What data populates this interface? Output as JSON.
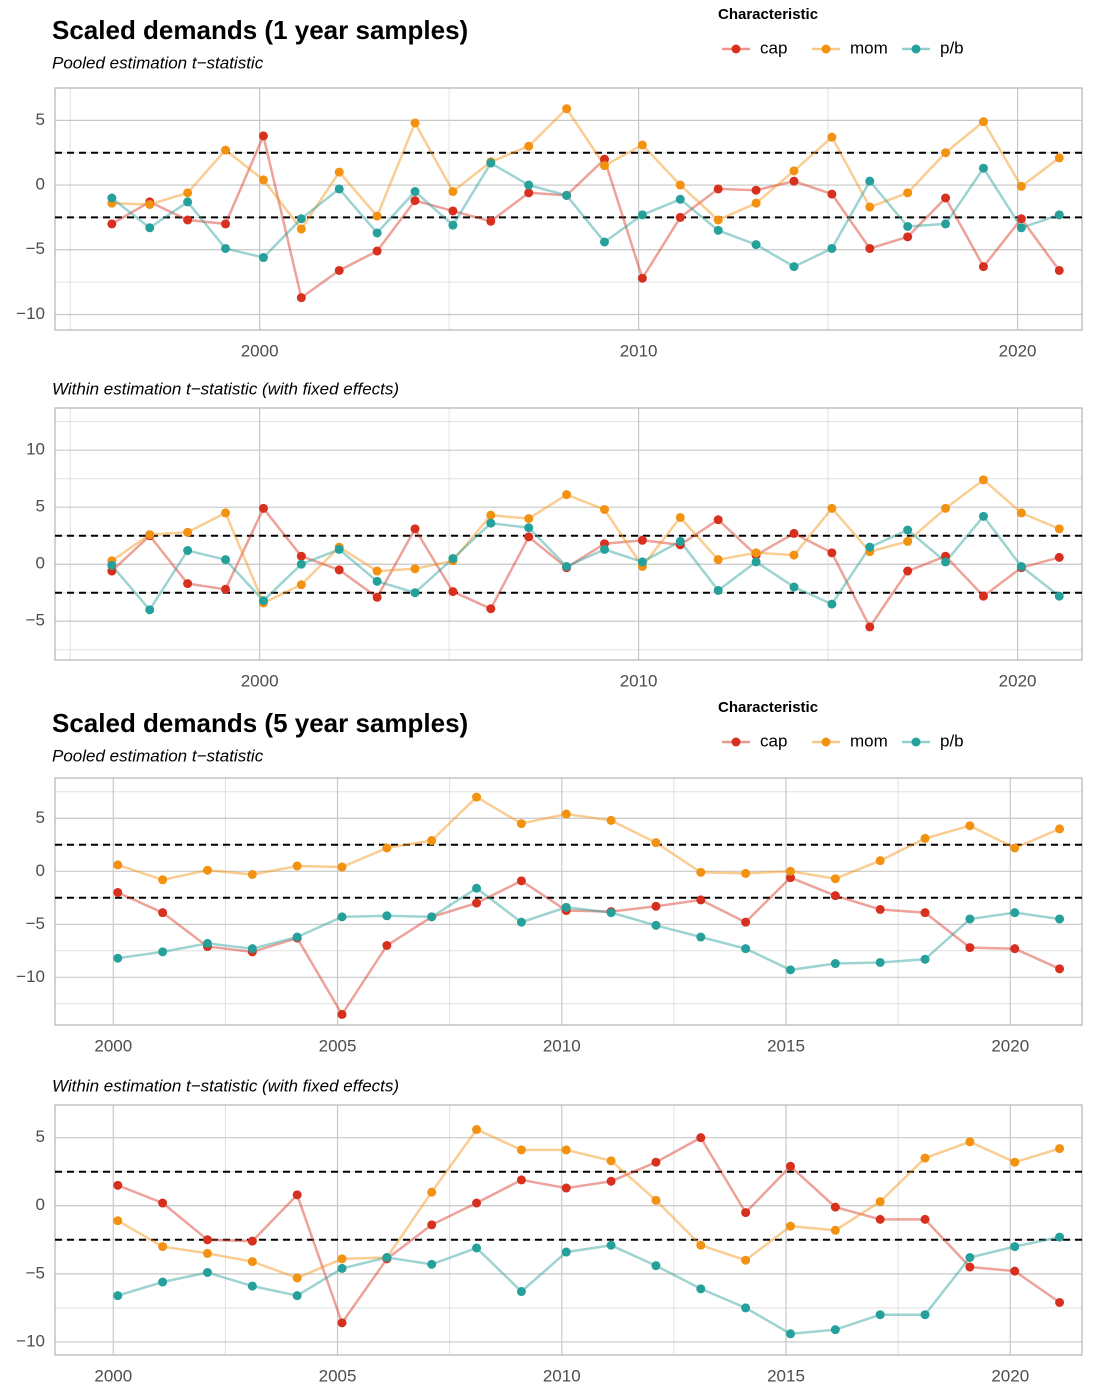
{
  "chart_data": [
    {
      "type": "line",
      "title": "Scaled demands (1 year samples)",
      "subtitle": "Pooled estimation t−statistic",
      "legend_title": "Characteristic",
      "legend": true,
      "x": [
        1996.1,
        1997.1,
        1998.1,
        1999.1,
        2000.1,
        2001.1,
        2002.1,
        2003.1,
        2004.1,
        2005.1,
        2006.1,
        2007.1,
        2008.1,
        2009.1,
        2010.1,
        2011.1,
        2012.1,
        2013.1,
        2014.1,
        2015.1,
        2016.1,
        2017.1,
        2018.1,
        2019.1,
        2020.1,
        2021.1
      ],
      "series": [
        {
          "name": "cap",
          "color": "#d7301f",
          "values": [
            -3,
            -1.3,
            -2.7,
            -3,
            3.8,
            -8.7,
            -6.6,
            -5.1,
            -1.2,
            -2.0,
            -2.8,
            -0.6,
            -0.8,
            2.0,
            -7.2,
            -2.5,
            -0.3,
            -0.4,
            0.3,
            -0.7,
            -4.9,
            -4.0,
            -1.0,
            -6.3,
            -2.6,
            -6.6
          ]
        },
        {
          "name": "mom",
          "color": "#f39110",
          "values": [
            -1.4,
            -1.5,
            -0.6,
            2.7,
            0.4,
            -3.4,
            1.0,
            -2.4,
            4.8,
            -0.5,
            1.8,
            3.0,
            5.9,
            1.5,
            3.1,
            0,
            -2.7,
            -1.4,
            1.1,
            3.7,
            -1.7,
            -0.6,
            2.5,
            4.9,
            -0.1,
            2.1
          ]
        },
        {
          "name": "p/b",
          "color": "#26a09a",
          "values": [
            -1.0,
            -3.3,
            -1.3,
            -4.9,
            -5.6,
            -2.6,
            -0.3,
            -3.7,
            -0.5,
            -3.1,
            1.7,
            0,
            -0.8,
            -4.4,
            -2.3,
            -1.1,
            -3.5,
            -4.6,
            -6.3,
            -4.9,
            0.3,
            -3.2,
            -3.0,
            1.3,
            -3.3,
            -2.3
          ]
        }
      ],
      "xlim": [
        1994.6,
        2021.7
      ],
      "xticks": [
        2000,
        2010,
        2020
      ],
      "ylim": [
        -11.2,
        7.5
      ],
      "yticks": [
        {
          "value": -10,
          "label": "−10"
        },
        {
          "value": -5,
          "label": "−5"
        },
        0,
        5
      ],
      "reference_lines": [
        2.5,
        -2.5
      ],
      "grid": true
    },
    {
      "type": "line",
      "subtitle": "Within estimation t−statistic (with fixed effects)",
      "x": [
        1996.1,
        1997.1,
        1998.1,
        1999.1,
        2000.1,
        2001.1,
        2002.1,
        2003.1,
        2004.1,
        2005.1,
        2006.1,
        2007.1,
        2008.1,
        2009.1,
        2010.1,
        2011.1,
        2012.1,
        2013.1,
        2014.1,
        2015.1,
        2016.1,
        2017.1,
        2018.1,
        2019.1,
        2020.1,
        2021.1
      ],
      "series": [
        {
          "name": "cap",
          "color": "#d7301f",
          "values": [
            -0.6,
            2.5,
            -1.7,
            -2.2,
            4.9,
            0.7,
            -0.5,
            -2.9,
            3.1,
            -2.4,
            -3.9,
            2.4,
            -0.3,
            1.8,
            2.1,
            1.7,
            3.9,
            0.8,
            2.7,
            1.0,
            -5.5,
            -0.6,
            0.7,
            -2.8,
            -0.3,
            0.6
          ]
        },
        {
          "name": "mom",
          "color": "#f39110",
          "values": [
            0.3,
            2.6,
            2.8,
            4.5,
            -3.4,
            -1.8,
            1.5,
            -0.6,
            -0.4,
            0.3,
            4.3,
            4.0,
            6.1,
            4.8,
            -0.2,
            4.1,
            0.4,
            1.0,
            0.8,
            4.9,
            1.1,
            2.0,
            4.9,
            7.4,
            4.5,
            3.1
          ]
        },
        {
          "name": "p/b",
          "color": "#26a09a",
          "values": [
            -0.1,
            -4.0,
            1.2,
            0.4,
            -3.2,
            0,
            1.3,
            -1.5,
            -2.5,
            0.5,
            3.6,
            3.2,
            -0.2,
            1.3,
            0.2,
            2.0,
            -2.3,
            0.2,
            -2.0,
            -3.5,
            1.5,
            3.0,
            0.2,
            4.2,
            -0.2,
            -2.8
          ]
        }
      ],
      "xlim": [
        1994.6,
        2021.7
      ],
      "xticks": [
        2000,
        2010,
        2020
      ],
      "ylim": [
        -8.4,
        13.7
      ],
      "yticks": [
        {
          "value": -5,
          "label": "−5"
        },
        0,
        5,
        10
      ],
      "reference_lines": [
        2.5,
        -2.5
      ],
      "grid": true
    },
    {
      "type": "line",
      "title": "Scaled demands (5 year samples)",
      "subtitle": "Pooled estimation t−statistic",
      "legend_title": "Characteristic",
      "legend": true,
      "x": [
        2000.1,
        2001.1,
        2002.1,
        2003.1,
        2004.1,
        2005.1,
        2006.1,
        2007.1,
        2008.1,
        2009.1,
        2010.1,
        2011.1,
        2012.1,
        2013.1,
        2014.1,
        2015.1,
        2016.1,
        2017.1,
        2018.1,
        2019.1,
        2020.1,
        2021.1
      ],
      "series": [
        {
          "name": "cap",
          "color": "#d7301f",
          "values": [
            -2.0,
            -3.9,
            -7.1,
            -7.6,
            -6.3,
            -13.5,
            -7.0,
            -4.3,
            -3.0,
            -0.9,
            -3.7,
            -3.8,
            -3.3,
            -2.7,
            -4.8,
            -0.6,
            -2.3,
            -3.6,
            -3.9,
            -7.2,
            -7.3,
            -9.2
          ]
        },
        {
          "name": "mom",
          "color": "#f39110",
          "values": [
            0.6,
            -0.8,
            0.1,
            -0.3,
            0.5,
            0.4,
            2.2,
            2.9,
            7.0,
            4.5,
            5.4,
            4.8,
            2.7,
            -0.1,
            -0.2,
            0,
            -0.7,
            1.0,
            3.1,
            4.3,
            2.2,
            4.0
          ]
        },
        {
          "name": "p/b",
          "color": "#26a09a",
          "values": [
            -8.2,
            -7.6,
            -6.8,
            -7.3,
            -6.2,
            -4.3,
            -4.2,
            -4.3,
            -1.6,
            -4.8,
            -3.4,
            -3.9,
            -5.1,
            -6.2,
            -7.3,
            -9.3,
            -8.7,
            -8.6,
            -8.3,
            -4.5,
            -3.9,
            -4.5
          ]
        }
      ],
      "xlim": [
        1998.7,
        2021.6
      ],
      "xticks": [
        2000,
        2005,
        2010,
        2015,
        2020
      ],
      "ylim": [
        -14.5,
        8.8
      ],
      "yticks": [
        {
          "value": -10,
          "label": "−10"
        },
        {
          "value": -5,
          "label": "−5"
        },
        0,
        5
      ],
      "reference_lines": [
        2.5,
        -2.5
      ],
      "grid": true
    },
    {
      "type": "line",
      "subtitle": "Within estimation t−statistic (with fixed effects)",
      "x": [
        2000.1,
        2001.1,
        2002.1,
        2003.1,
        2004.1,
        2005.1,
        2006.1,
        2007.1,
        2008.1,
        2009.1,
        2010.1,
        2011.1,
        2012.1,
        2013.1,
        2014.1,
        2015.1,
        2016.1,
        2017.1,
        2018.1,
        2019.1,
        2020.1,
        2021.1
      ],
      "series": [
        {
          "name": "cap",
          "color": "#d7301f",
          "values": [
            1.5,
            0.2,
            -2.5,
            -2.6,
            0.8,
            -8.6,
            -3.9,
            -1.4,
            0.2,
            1.9,
            1.3,
            1.8,
            3.2,
            5.0,
            -0.5,
            2.9,
            -0.1,
            -1.0,
            -1.0,
            -4.5,
            -4.8,
            -7.1
          ]
        },
        {
          "name": "mom",
          "color": "#f39110",
          "values": [
            -1.1,
            -3.0,
            -3.5,
            -4.1,
            -5.3,
            -3.9,
            -3.8,
            1.0,
            5.6,
            4.1,
            4.1,
            3.3,
            0.4,
            -2.9,
            -4.0,
            -1.5,
            -1.8,
            0.3,
            3.5,
            4.7,
            3.2,
            4.2
          ]
        },
        {
          "name": "p/b",
          "color": "#26a09a",
          "values": [
            -6.6,
            -5.6,
            -4.9,
            -5.9,
            -6.6,
            -4.6,
            -3.8,
            -4.3,
            -3.1,
            -6.3,
            -3.4,
            -2.9,
            -4.4,
            -6.1,
            -7.5,
            -9.4,
            -9.1,
            -8.0,
            -8.0,
            -3.8,
            -3.0,
            -2.3
          ]
        }
      ],
      "xlim": [
        1998.7,
        2021.6
      ],
      "xticks": [
        2000,
        2005,
        2010,
        2015,
        2020
      ],
      "ylim": [
        -10.96,
        7.4
      ],
      "yticks": [
        {
          "value": -10,
          "label": "−10"
        },
        {
          "value": -5,
          "label": "−5"
        },
        0,
        5
      ],
      "reference_lines": [
        2.5,
        -2.5
      ],
      "grid": true
    }
  ]
}
